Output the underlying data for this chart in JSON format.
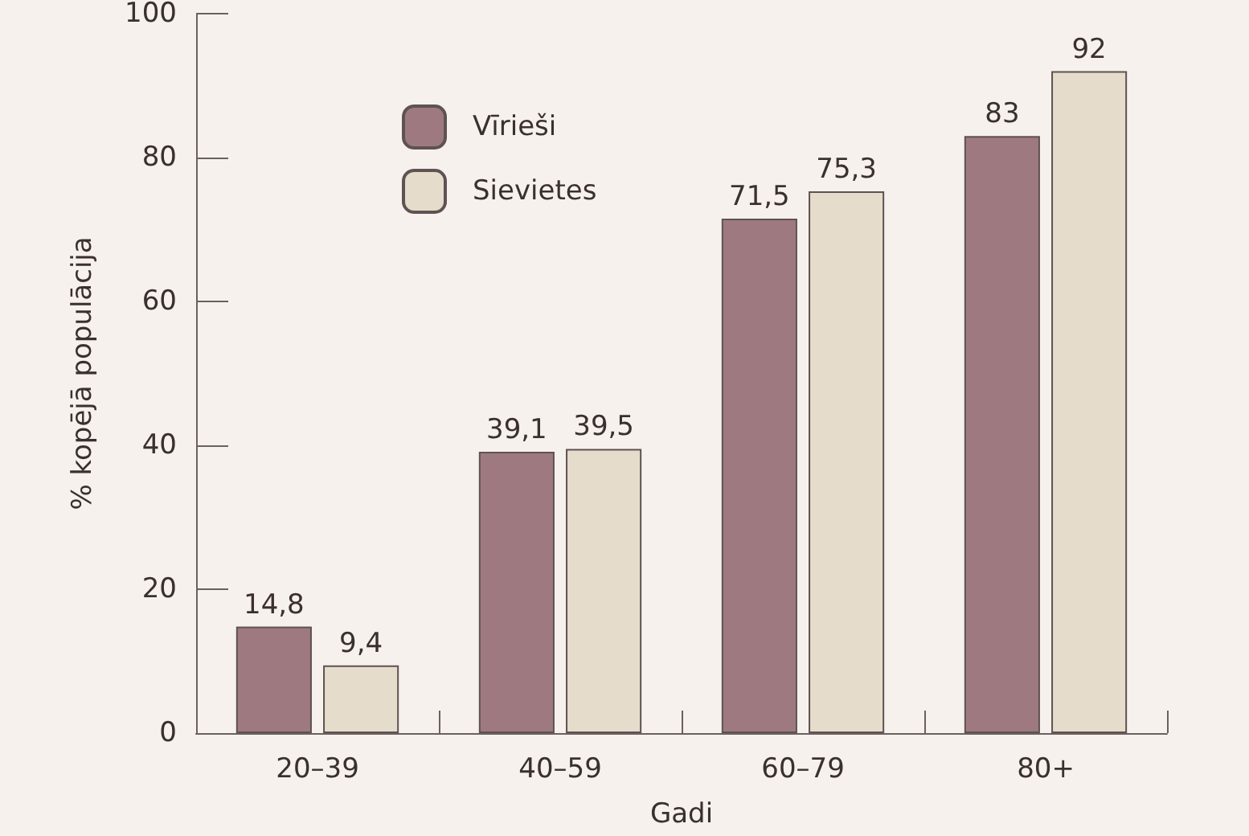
{
  "chart_data": {
    "type": "bar",
    "xlabel": "Gadi",
    "ylabel": "% kopējā populācija",
    "categories": [
      "20–39",
      "40–59",
      "60–79",
      "80+"
    ],
    "series": [
      {
        "name": "Vīrieši",
        "color": "#9e7a80",
        "values": [
          14.8,
          39.1,
          71.5,
          83
        ],
        "value_labels": [
          "14,8",
          "39,1",
          "71,5",
          "83"
        ]
      },
      {
        "name": "Sievietes",
        "color": "#e6dccb",
        "values": [
          9.4,
          39.5,
          75.3,
          92
        ],
        "value_labels": [
          "9,4",
          "39,5",
          "75,3",
          "92"
        ]
      }
    ],
    "ylim": [
      0,
      100
    ],
    "yticks": [
      0,
      20,
      40,
      60,
      80,
      100
    ],
    "grid": false,
    "legend": "top left"
  }
}
